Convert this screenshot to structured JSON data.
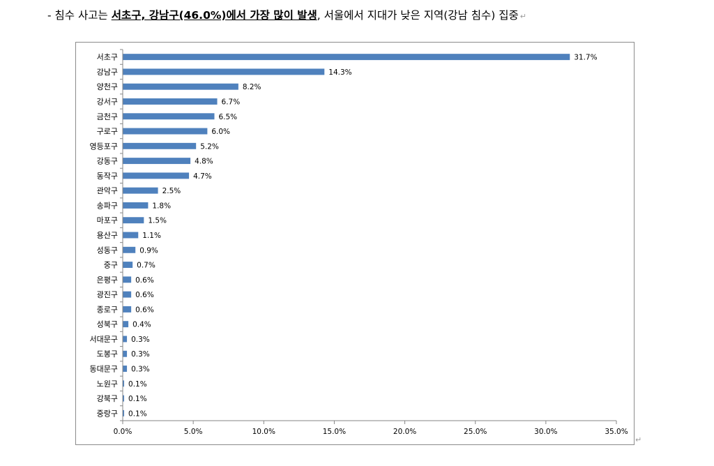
{
  "heading": {
    "prefix": "- 침수 사고는 ",
    "emphasis": "서초구, 강남구(46.0%)에서 가장 많이 발생",
    "suffix": ", 서울에서 지대가 낮은 지역(강남 침수) 집중",
    "mark": "↵"
  },
  "end_mark": "↵",
  "colors": {
    "bar": "#4f81bd",
    "axis": "#868686",
    "frame": "#8a8a8a",
    "text": "#000000"
  },
  "chart_data": {
    "type": "bar",
    "orientation": "horizontal",
    "title": "",
    "xlabel": "",
    "ylabel": "",
    "xlim": [
      0,
      35
    ],
    "x_ticks": [
      "0.0%",
      "5.0%",
      "10.0%",
      "15.0%",
      "20.0%",
      "25.0%",
      "30.0%",
      "35.0%"
    ],
    "grid": false,
    "legend": "none",
    "categories": [
      "서초구",
      "강남구",
      "양천구",
      "강서구",
      "금천구",
      "구로구",
      "영등포구",
      "강동구",
      "동작구",
      "관악구",
      "송파구",
      "마포구",
      "용산구",
      "성동구",
      "중구",
      "은평구",
      "광진구",
      "종로구",
      "성북구",
      "서대문구",
      "도봉구",
      "동대문구",
      "노원구",
      "강북구",
      "중랑구"
    ],
    "values": [
      31.7,
      14.3,
      8.2,
      6.7,
      6.5,
      6.0,
      5.2,
      4.8,
      4.7,
      2.5,
      1.8,
      1.5,
      1.1,
      0.9,
      0.7,
      0.6,
      0.6,
      0.6,
      0.4,
      0.3,
      0.3,
      0.3,
      0.1,
      0.1,
      0.1
    ],
    "data_labels": [
      "31.7%",
      "14.3%",
      "8.2%",
      "6.7%",
      "6.5%",
      "6.0%",
      "5.2%",
      "4.8%",
      "4.7%",
      "2.5%",
      "1.8%",
      "1.5%",
      "1.1%",
      "0.9%",
      "0.7%",
      "0.6%",
      "0.6%",
      "0.6%",
      "0.4%",
      "0.3%",
      "0.3%",
      "0.3%",
      "0.1%",
      "0.1%",
      "0.1%"
    ]
  }
}
